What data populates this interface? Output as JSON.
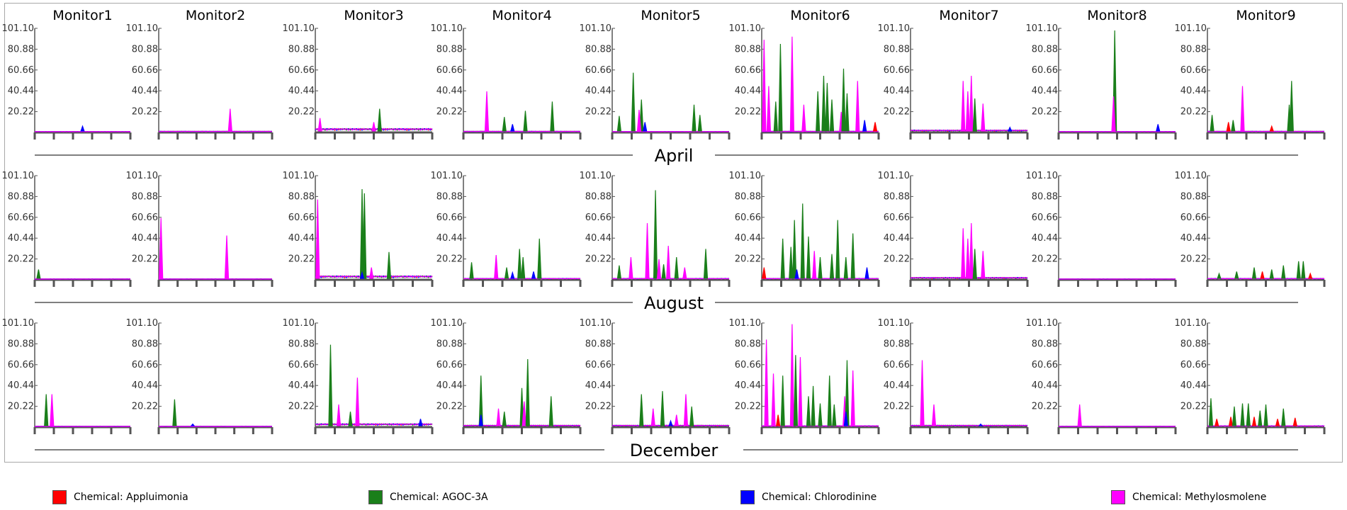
{
  "chart_data": {
    "type": "line",
    "y_ticks": [
      "101.10",
      "80.88",
      "60.66",
      "40.44",
      "20.22"
    ],
    "ylim": [
      0,
      101.1
    ],
    "monitors": [
      "Monitor1",
      "Monitor2",
      "Monitor3",
      "Monitor4",
      "Monitor5",
      "Monitor6",
      "Monitor7",
      "Monitor8",
      "Monitor9"
    ],
    "months": [
      "April",
      "August",
      "December"
    ],
    "legend": [
      {
        "name": "Chemical: Appluimonia",
        "color": "#ff0000"
      },
      {
        "name": "Chemical: AGOC-3A",
        "color": "#1a7f1a"
      },
      {
        "name": "Chemical: Chlorodinine",
        "color": "#0000ff"
      },
      {
        "name": "Chemical: Methylosmolene",
        "color": "#ff00ff"
      }
    ],
    "baseline": {
      "April": [
        0.6,
        0.8,
        3.5,
        0.8,
        0.6,
        0.8,
        2.0,
        0.6,
        0.8
      ],
      "August": [
        0.5,
        0.5,
        3.5,
        1.0,
        1.0,
        1.0,
        2.0,
        0.5,
        1.0
      ],
      "December": [
        0.5,
        0.5,
        3.0,
        1.5,
        1.5,
        1.0,
        1.5,
        0.5,
        1.0
      ]
    },
    "peaks": {
      "April": [
        [
          [
            "#0000ff",
            0.5,
            6
          ]
        ],
        [
          [
            "#ff00ff",
            0.63,
            23
          ]
        ],
        [
          [
            "#ff00ff",
            0.04,
            14
          ],
          [
            "#1a7f1a",
            0.55,
            23
          ],
          [
            "#ff00ff",
            0.5,
            10
          ]
        ],
        [
          [
            "#ff00ff",
            0.2,
            40
          ],
          [
            "#1a7f1a",
            0.35,
            15
          ],
          [
            "#0000ff",
            0.42,
            8
          ],
          [
            "#1a7f1a",
            0.53,
            21
          ],
          [
            "#1a7f1a",
            0.76,
            30
          ]
        ],
        [
          [
            "#1a7f1a",
            0.06,
            16
          ],
          [
            "#1a7f1a",
            0.18,
            58
          ],
          [
            "#1a7f1a",
            0.25,
            32
          ],
          [
            "#ff00ff",
            0.23,
            22
          ],
          [
            "#0000ff",
            0.28,
            10
          ],
          [
            "#1a7f1a",
            0.7,
            27
          ],
          [
            "#1a7f1a",
            0.75,
            17
          ]
        ],
        [
          [
            "#ff00ff",
            0.02,
            90
          ],
          [
            "#ff00ff",
            0.06,
            45
          ],
          [
            "#1a7f1a",
            0.12,
            30
          ],
          [
            "#1a7f1a",
            0.16,
            86
          ],
          [
            "#ff00ff",
            0.26,
            93
          ],
          [
            "#ff00ff",
            0.36,
            27
          ],
          [
            "#1a7f1a",
            0.48,
            40
          ],
          [
            "#1a7f1a",
            0.53,
            55
          ],
          [
            "#1a7f1a",
            0.56,
            48
          ],
          [
            "#1a7f1a",
            0.6,
            32
          ],
          [
            "#ff00ff",
            0.68,
            20
          ],
          [
            "#1a7f1a",
            0.7,
            62
          ],
          [
            "#1a7f1a",
            0.73,
            38
          ],
          [
            "#ff00ff",
            0.82,
            50
          ],
          [
            "#0000ff",
            0.88,
            12
          ],
          [
            "#ff0000",
            0.97,
            10
          ]
        ],
        [
          [
            "#ff00ff",
            0.45,
            50
          ],
          [
            "#ff00ff",
            0.52,
            55
          ],
          [
            "#ff00ff",
            0.49,
            40
          ],
          [
            "#1a7f1a",
            0.55,
            33
          ],
          [
            "#ff00ff",
            0.62,
            28
          ],
          [
            "#0000ff",
            0.85,
            5
          ]
        ],
        [
          [
            "#1a7f1a",
            0.48,
            99
          ],
          [
            "#ff00ff",
            0.47,
            35
          ],
          [
            "#0000ff",
            0.85,
            8
          ]
        ],
        [
          [
            "#1a7f1a",
            0.04,
            17
          ],
          [
            "#ff0000",
            0.18,
            10
          ],
          [
            "#1a7f1a",
            0.22,
            12
          ],
          [
            "#ff00ff",
            0.3,
            45
          ],
          [
            "#ff0000",
            0.55,
            6
          ],
          [
            "#1a7f1a",
            0.7,
            27
          ],
          [
            "#1a7f1a",
            0.72,
            50
          ]
        ]
      ],
      "August": [
        [
          [
            "#1a7f1a",
            0.04,
            10
          ]
        ],
        [
          [
            "#ff00ff",
            0.02,
            60
          ],
          [
            "#ff00ff",
            0.6,
            43
          ]
        ],
        [
          [
            "#ff00ff",
            0.02,
            78
          ],
          [
            "#1a7f1a",
            0.4,
            88
          ],
          [
            "#1a7f1a",
            0.42,
            84
          ],
          [
            "#ff00ff",
            0.48,
            12
          ],
          [
            "#1a7f1a",
            0.63,
            27
          ],
          [
            "#0000ff",
            0.4,
            7
          ]
        ],
        [
          [
            "#1a7f1a",
            0.07,
            17
          ],
          [
            "#ff00ff",
            0.28,
            24
          ],
          [
            "#1a7f1a",
            0.37,
            12
          ],
          [
            "#0000ff",
            0.42,
            7
          ],
          [
            "#1a7f1a",
            0.48,
            30
          ],
          [
            "#1a7f1a",
            0.51,
            22
          ],
          [
            "#1a7f1a",
            0.65,
            40
          ],
          [
            "#0000ff",
            0.6,
            8
          ]
        ],
        [
          [
            "#1a7f1a",
            0.06,
            14
          ],
          [
            "#ff00ff",
            0.16,
            22
          ],
          [
            "#ff00ff",
            0.3,
            55
          ],
          [
            "#1a7f1a",
            0.37,
            87
          ],
          [
            "#ff00ff",
            0.4,
            20
          ],
          [
            "#1a7f1a",
            0.44,
            15
          ],
          [
            "#ff00ff",
            0.48,
            33
          ],
          [
            "#1a7f1a",
            0.55,
            22
          ],
          [
            "#ff00ff",
            0.62,
            12
          ],
          [
            "#1a7f1a",
            0.8,
            30
          ]
        ],
        [
          [
            "#ff0000",
            0.02,
            12
          ],
          [
            "#1a7f1a",
            0.18,
            40
          ],
          [
            "#1a7f1a",
            0.25,
            32
          ],
          [
            "#1a7f1a",
            0.28,
            58
          ],
          [
            "#1a7f1a",
            0.35,
            74
          ],
          [
            "#1a7f1a",
            0.4,
            42
          ],
          [
            "#ff00ff",
            0.45,
            28
          ],
          [
            "#1a7f1a",
            0.5,
            22
          ],
          [
            "#1a7f1a",
            0.6,
            25
          ],
          [
            "#1a7f1a",
            0.65,
            58
          ],
          [
            "#1a7f1a",
            0.72,
            22
          ],
          [
            "#1a7f1a",
            0.78,
            45
          ],
          [
            "#0000ff",
            0.9,
            12
          ],
          [
            "#0000ff",
            0.3,
            10
          ]
        ],
        [
          [
            "#ff00ff",
            0.45,
            50
          ],
          [
            "#ff00ff",
            0.52,
            55
          ],
          [
            "#ff00ff",
            0.49,
            40
          ],
          [
            "#1a7f1a",
            0.55,
            30
          ],
          [
            "#ff00ff",
            0.62,
            28
          ]
        ],
        [],
        [
          [
            "#1a7f1a",
            0.1,
            6
          ],
          [
            "#1a7f1a",
            0.25,
            8
          ],
          [
            "#1a7f1a",
            0.4,
            12
          ],
          [
            "#ff0000",
            0.47,
            8
          ],
          [
            "#1a7f1a",
            0.55,
            10
          ],
          [
            "#1a7f1a",
            0.65,
            14
          ],
          [
            "#1a7f1a",
            0.78,
            18
          ],
          [
            "#1a7f1a",
            0.82,
            18
          ],
          [
            "#ff0000",
            0.88,
            6
          ]
        ]
      ],
      "December": [
        [
          [
            "#1a7f1a",
            0.12,
            32
          ],
          [
            "#ff00ff",
            0.18,
            32
          ]
        ],
        [
          [
            "#1a7f1a",
            0.14,
            27
          ],
          [
            "#0000ff",
            0.3,
            3
          ]
        ],
        [
          [
            "#1a7f1a",
            0.13,
            80
          ],
          [
            "#ff00ff",
            0.2,
            22
          ],
          [
            "#1a7f1a",
            0.3,
            15
          ],
          [
            "#ff00ff",
            0.36,
            48
          ],
          [
            "#0000ff",
            0.9,
            8
          ]
        ],
        [
          [
            "#1a7f1a",
            0.15,
            50
          ],
          [
            "#0000ff",
            0.15,
            12
          ],
          [
            "#ff00ff",
            0.3,
            18
          ],
          [
            "#1a7f1a",
            0.35,
            15
          ],
          [
            "#1a7f1a",
            0.5,
            38
          ],
          [
            "#ff00ff",
            0.52,
            25
          ],
          [
            "#1a7f1a",
            0.55,
            66
          ],
          [
            "#1a7f1a",
            0.75,
            30
          ]
        ],
        [
          [
            "#1a7f1a",
            0.25,
            32
          ],
          [
            "#ff00ff",
            0.35,
            18
          ],
          [
            "#1a7f1a",
            0.43,
            35
          ],
          [
            "#ff00ff",
            0.55,
            12
          ],
          [
            "#ff00ff",
            0.63,
            32
          ],
          [
            "#1a7f1a",
            0.68,
            20
          ],
          [
            "#0000ff",
            0.5,
            6
          ]
        ],
        [
          [
            "#ff00ff",
            0.04,
            85
          ],
          [
            "#ff00ff",
            0.1,
            52
          ],
          [
            "#ff0000",
            0.14,
            12
          ],
          [
            "#1a7f1a",
            0.18,
            50
          ],
          [
            "#ff00ff",
            0.26,
            100
          ],
          [
            "#1a7f1a",
            0.29,
            70
          ],
          [
            "#ff00ff",
            0.33,
            68
          ],
          [
            "#1a7f1a",
            0.4,
            30
          ],
          [
            "#1a7f1a",
            0.44,
            40
          ],
          [
            "#1a7f1a",
            0.5,
            23
          ],
          [
            "#1a7f1a",
            0.58,
            50
          ],
          [
            "#1a7f1a",
            0.62,
            22
          ],
          [
            "#ff00ff",
            0.71,
            30
          ],
          [
            "#1a7f1a",
            0.73,
            65
          ],
          [
            "#ff00ff",
            0.78,
            55
          ],
          [
            "#0000ff",
            0.72,
            15
          ]
        ],
        [
          [
            "#ff00ff",
            0.1,
            65
          ],
          [
            "#ff00ff",
            0.2,
            22
          ],
          [
            "#0000ff",
            0.6,
            3
          ]
        ],
        [
          [
            "#ff00ff",
            0.18,
            22
          ]
        ],
        [
          [
            "#1a7f1a",
            0.03,
            28
          ],
          [
            "#ff0000",
            0.08,
            8
          ],
          [
            "#ff0000",
            0.2,
            10
          ],
          [
            "#1a7f1a",
            0.23,
            20
          ],
          [
            "#1a7f1a",
            0.3,
            23
          ],
          [
            "#1a7f1a",
            0.35,
            23
          ],
          [
            "#ff0000",
            0.4,
            10
          ],
          [
            "#1a7f1a",
            0.45,
            16
          ],
          [
            "#1a7f1a",
            0.5,
            22
          ],
          [
            "#ff0000",
            0.6,
            8
          ],
          [
            "#1a7f1a",
            0.65,
            18
          ],
          [
            "#ff0000",
            0.75,
            9
          ]
        ]
      ]
    }
  }
}
